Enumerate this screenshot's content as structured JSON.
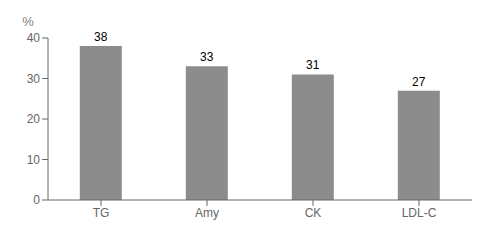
{
  "chart_data": {
    "type": "bar",
    "ylabel": "%",
    "categories": [
      "TG",
      "Amy",
      "CK",
      "LDL-C"
    ],
    "values": [
      38,
      33,
      31,
      27
    ],
    "color": "#8c8c8c",
    "ylim": [
      0,
      40
    ],
    "yticks": [
      0,
      10,
      20,
      30,
      40
    ],
    "grid": false,
    "data_labels": true
  }
}
